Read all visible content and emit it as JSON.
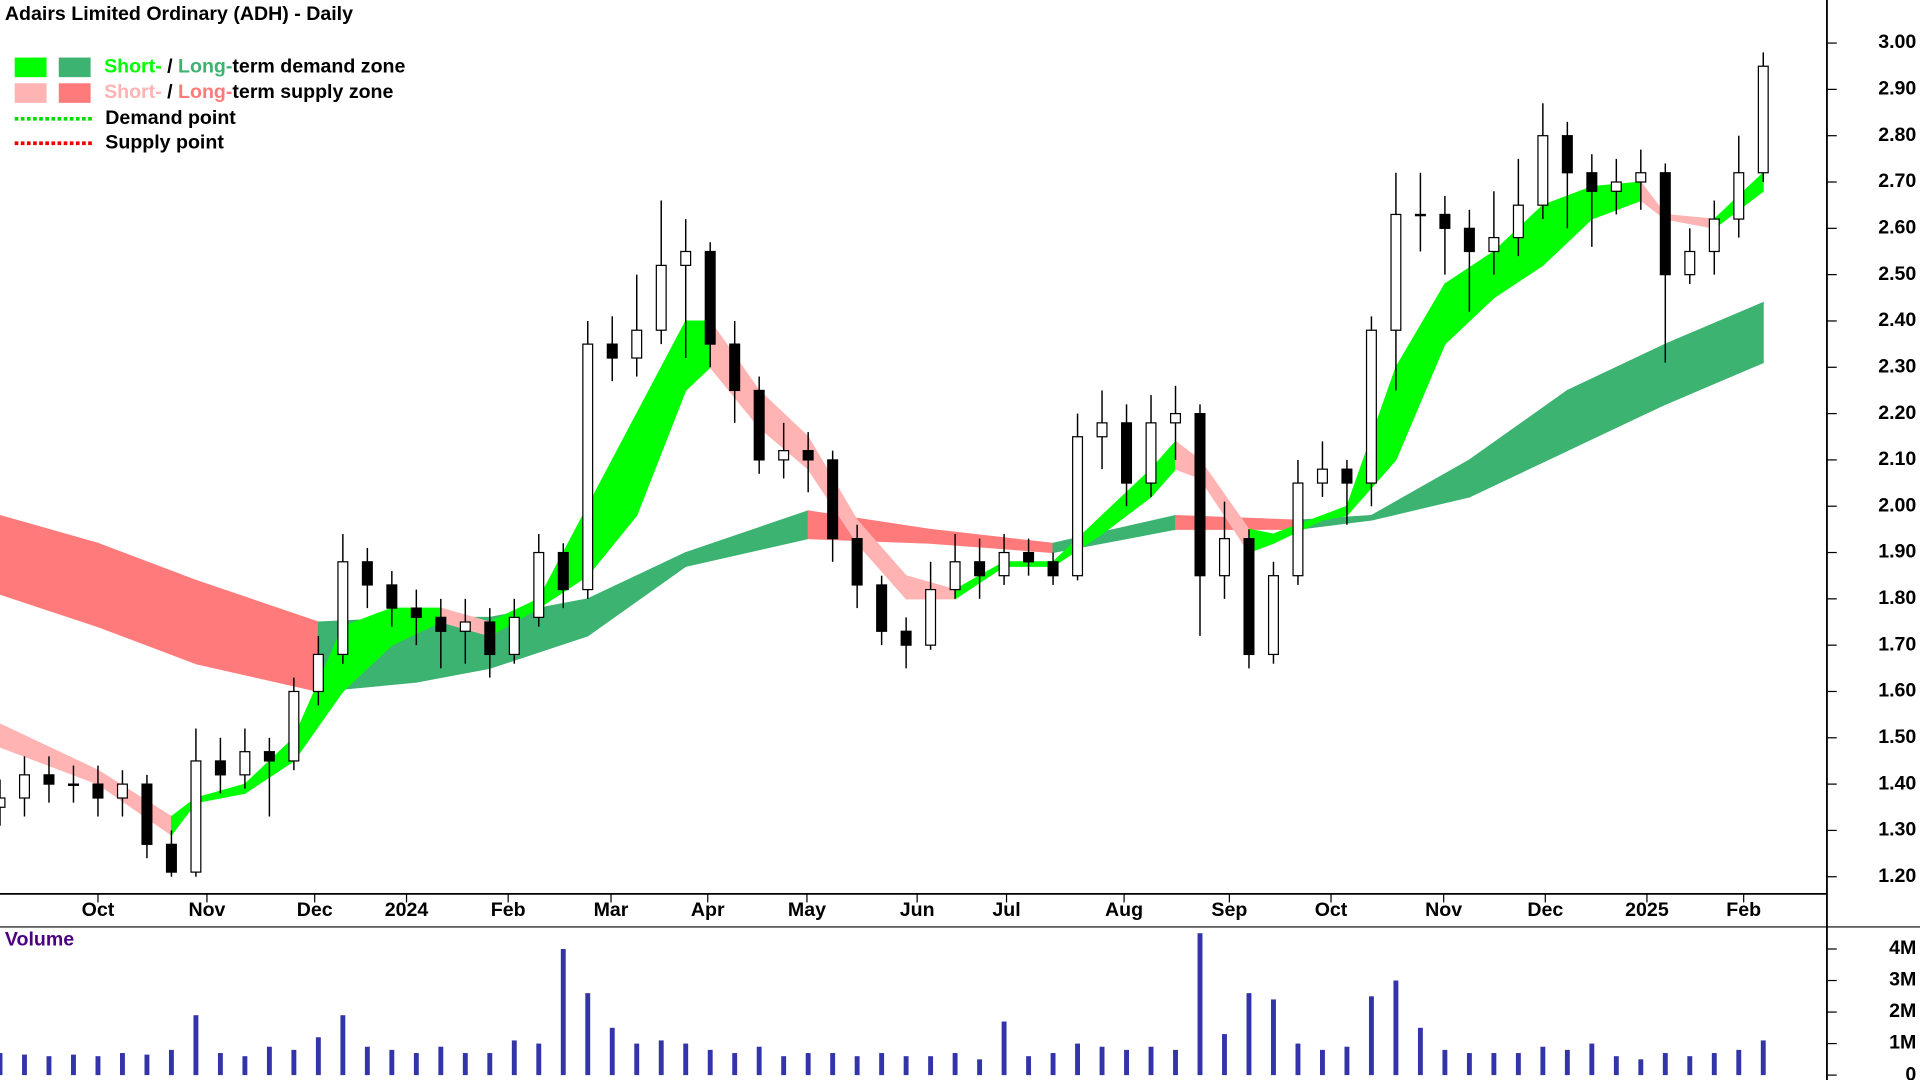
{
  "chart_data": [
    {
      "type": "candlestick",
      "title": "Adairs Limited Ordinary (ADH) - Daily",
      "xlim": [
        0,
        74.5
      ],
      "xticks": [
        {
          "value": 4,
          "label": "Oct"
        },
        {
          "value": 8.45,
          "label": "Nov"
        },
        {
          "value": 12.85,
          "label": "Dec"
        },
        {
          "value": 16.6,
          "label": "2024"
        },
        {
          "value": 20.75,
          "label": "Feb"
        },
        {
          "value": 24.95,
          "label": "Mar"
        },
        {
          "value": 28.9,
          "label": "Apr"
        },
        {
          "value": 32.95,
          "label": "May"
        },
        {
          "value": 37.45,
          "label": "Jun"
        },
        {
          "value": 41.1,
          "label": "Jul"
        },
        {
          "value": 45.9,
          "label": "Aug"
        },
        {
          "value": 50.2,
          "label": "Sep"
        },
        {
          "value": 54.35,
          "label": "Oct"
        },
        {
          "value": 58.95,
          "label": "Nov"
        },
        {
          "value": 63.1,
          "label": "Dec"
        },
        {
          "value": 67.25,
          "label": "2025"
        },
        {
          "value": 71.2,
          "label": "Feb"
        }
      ],
      "ylim": [
        1.163,
        3.093
      ],
      "yticks": [
        {
          "value": 1.2,
          "label": "1.20"
        },
        {
          "value": 1.3,
          "label": "1.30"
        },
        {
          "value": 1.4,
          "label": "1.40"
        },
        {
          "value": 1.5,
          "label": "1.50"
        },
        {
          "value": 1.6,
          "label": "1.60"
        },
        {
          "value": 1.7,
          "label": "1.70"
        },
        {
          "value": 1.8,
          "label": "1.80"
        },
        {
          "value": 1.9,
          "label": "1.90"
        },
        {
          "value": 2.0,
          "label": "2.00"
        },
        {
          "value": 2.1,
          "label": "2.10"
        },
        {
          "value": 2.2,
          "label": "2.20"
        },
        {
          "value": 2.3,
          "label": "2.30"
        },
        {
          "value": 2.4,
          "label": "2.40"
        },
        {
          "value": 2.5,
          "label": "2.50"
        },
        {
          "value": 2.6,
          "label": "2.60"
        },
        {
          "value": 2.7,
          "label": "2.70"
        },
        {
          "value": 2.8,
          "label": "2.80"
        },
        {
          "value": 2.9,
          "label": "2.90"
        },
        {
          "value": 3.0,
          "label": "3.00"
        }
      ],
      "x": [
        0,
        1,
        2,
        3,
        4,
        5,
        6,
        7,
        8,
        9,
        10,
        11,
        12,
        13,
        14,
        15,
        16,
        17,
        18,
        19,
        20,
        21,
        22,
        23,
        24,
        25,
        26,
        27,
        28,
        29,
        30,
        31,
        32,
        33,
        34,
        35,
        36,
        37,
        38,
        39,
        40,
        41,
        42,
        43,
        44,
        45,
        46,
        47,
        48,
        49,
        50,
        51,
        52,
        53,
        54,
        55,
        56,
        57,
        58,
        59,
        60,
        61,
        62,
        63,
        64,
        65,
        66,
        67,
        68,
        69,
        70,
        71,
        72
      ],
      "open": [
        1.35,
        1.37,
        1.42,
        1.4,
        1.4,
        1.37,
        1.4,
        1.27,
        1.21,
        1.45,
        1.42,
        1.47,
        1.45,
        1.6,
        1.68,
        1.88,
        1.83,
        1.78,
        1.76,
        1.73,
        1.75,
        1.68,
        1.76,
        1.9,
        1.82,
        2.35,
        2.32,
        2.38,
        2.52,
        2.55,
        2.35,
        2.25,
        2.1,
        2.12,
        2.1,
        1.93,
        1.83,
        1.73,
        1.7,
        1.82,
        1.88,
        1.85,
        1.9,
        1.88,
        1.85,
        2.15,
        2.18,
        2.05,
        2.18,
        2.2,
        1.85,
        1.93,
        1.68,
        1.85,
        2.05,
        2.08,
        2.05,
        2.38,
        2.63,
        2.63,
        2.6,
        2.55,
        2.58,
        2.65,
        2.8,
        2.72,
        2.68,
        2.7,
        2.72,
        2.5,
        2.55,
        2.62,
        2.72
      ],
      "high": [
        1.41,
        1.46,
        1.46,
        1.44,
        1.44,
        1.43,
        1.42,
        1.3,
        1.52,
        1.5,
        1.52,
        1.5,
        1.63,
        1.72,
        1.94,
        1.91,
        1.86,
        1.82,
        1.8,
        1.8,
        1.78,
        1.8,
        1.94,
        1.92,
        2.4,
        2.41,
        2.5,
        2.66,
        2.62,
        2.57,
        2.4,
        2.28,
        2.18,
        2.16,
        2.12,
        1.96,
        1.85,
        1.76,
        1.88,
        1.94,
        1.93,
        1.94,
        1.93,
        1.9,
        2.2,
        2.25,
        2.22,
        2.24,
        2.26,
        2.22,
        2.01,
        1.95,
        1.88,
        2.1,
        2.14,
        2.1,
        2.41,
        2.72,
        2.72,
        2.67,
        2.64,
        2.68,
        2.75,
        2.87,
        2.83,
        2.76,
        2.75,
        2.77,
        2.74,
        2.6,
        2.66,
        2.8,
        2.98
      ],
      "low": [
        1.31,
        1.33,
        1.36,
        1.36,
        1.33,
        1.33,
        1.24,
        1.2,
        1.2,
        1.38,
        1.39,
        1.33,
        1.43,
        1.57,
        1.66,
        1.78,
        1.74,
        1.7,
        1.65,
        1.66,
        1.63,
        1.66,
        1.74,
        1.78,
        1.8,
        2.27,
        2.28,
        2.35,
        2.32,
        2.3,
        2.18,
        2.07,
        2.06,
        2.03,
        1.88,
        1.78,
        1.7,
        1.65,
        1.69,
        1.8,
        1.8,
        1.83,
        1.85,
        1.83,
        1.84,
        2.08,
        2.0,
        2.02,
        2.1,
        1.72,
        1.8,
        1.65,
        1.66,
        1.83,
        2.02,
        1.96,
        2.0,
        2.25,
        2.55,
        2.5,
        2.42,
        2.5,
        2.54,
        2.62,
        2.6,
        2.56,
        2.63,
        2.64,
        2.31,
        2.48,
        2.5,
        2.58,
        2.7
      ],
      "close": [
        1.37,
        1.42,
        1.4,
        1.4,
        1.37,
        1.4,
        1.27,
        1.21,
        1.45,
        1.42,
        1.47,
        1.45,
        1.6,
        1.68,
        1.88,
        1.83,
        1.78,
        1.76,
        1.73,
        1.75,
        1.68,
        1.76,
        1.9,
        1.82,
        2.35,
        2.32,
        2.38,
        2.52,
        2.55,
        2.35,
        2.25,
        2.1,
        2.12,
        2.1,
        1.93,
        1.83,
        1.73,
        1.7,
        1.82,
        1.88,
        1.85,
        1.9,
        1.88,
        1.85,
        2.15,
        2.18,
        2.05,
        2.18,
        2.2,
        1.85,
        1.93,
        1.68,
        1.85,
        2.05,
        2.08,
        2.05,
        2.38,
        2.63,
        2.63,
        2.6,
        2.55,
        2.58,
        2.65,
        2.8,
        2.72,
        2.68,
        2.7,
        2.72,
        2.5,
        2.55,
        2.62,
        2.72,
        2.95
      ],
      "short_zone": {
        "x": [
          0,
          4,
          7,
          8,
          10,
          12,
          14,
          16,
          18,
          20,
          22,
          24,
          26,
          28,
          29,
          31,
          33,
          35,
          37,
          39,
          41,
          43,
          45,
          47,
          48,
          49,
          51,
          52,
          54,
          55,
          57,
          59,
          61,
          63,
          65,
          67,
          68,
          70,
          72
        ],
        "upper": [
          1.53,
          1.43,
          1.33,
          1.37,
          1.4,
          1.5,
          1.74,
          1.78,
          1.78,
          1.75,
          1.8,
          2.0,
          2.2,
          2.4,
          2.4,
          2.25,
          2.15,
          1.97,
          1.85,
          1.82,
          1.88,
          1.88,
          1.98,
          2.08,
          2.14,
          2.1,
          1.95,
          1.94,
          1.98,
          2.0,
          2.3,
          2.48,
          2.55,
          2.65,
          2.69,
          2.7,
          2.63,
          2.62,
          2.72
        ],
        "lower": [
          1.48,
          1.4,
          1.29,
          1.36,
          1.38,
          1.45,
          1.6,
          1.7,
          1.75,
          1.72,
          1.78,
          1.85,
          1.98,
          2.25,
          2.3,
          2.17,
          2.08,
          1.92,
          1.8,
          1.8,
          1.87,
          1.87,
          1.94,
          2.02,
          2.08,
          2.06,
          1.9,
          1.92,
          1.97,
          1.98,
          2.1,
          2.35,
          2.45,
          2.52,
          2.62,
          2.66,
          2.62,
          2.6,
          2.68
        ]
      },
      "long_zone": {
        "x": [
          0,
          4,
          8,
          13,
          17,
          20,
          24,
          28,
          33,
          38,
          43,
          48,
          53,
          56,
          60,
          64,
          68,
          72
        ],
        "upper": [
          1.98,
          1.92,
          1.84,
          1.75,
          1.76,
          1.76,
          1.8,
          1.9,
          1.99,
          1.95,
          1.92,
          1.98,
          1.97,
          1.98,
          2.1,
          2.25,
          2.35,
          2.44
        ],
        "lower": [
          1.81,
          1.74,
          1.66,
          1.6,
          1.62,
          1.65,
          1.72,
          1.87,
          1.93,
          1.92,
          1.9,
          1.95,
          1.95,
          1.97,
          2.02,
          2.12,
          2.22,
          2.31
        ]
      },
      "legend": {
        "zones": [
          {
            "parts": [
              "Short-",
              " / ",
              "Long-",
              "term demand zone"
            ],
            "colors": [
              "#00ff00",
              "#3cb371"
            ]
          },
          {
            "parts": [
              "Short-",
              " / ",
              "Long-",
              "term supply zone"
            ],
            "colors": [
              "#ffb3b3",
              "#ff7b7b"
            ]
          }
        ],
        "points": [
          {
            "label": "Demand point",
            "color": "#00dd00"
          },
          {
            "label": "Supply point",
            "color": "#ee0000"
          }
        ]
      }
    },
    {
      "type": "bar",
      "title": "Volume",
      "color": "#3333aa",
      "xlim": [
        0,
        74.5
      ],
      "ylim": [
        0,
        4700000
      ],
      "yticks": [
        0,
        {
          "value": 1000000,
          "label": "1M"
        },
        {
          "value": 2000000,
          "label": "2M"
        },
        {
          "value": 3000000,
          "label": "3M"
        },
        {
          "value": 4000000,
          "label": "4M"
        }
      ],
      "x": [
        0,
        1,
        2,
        3,
        4,
        5,
        6,
        7,
        8,
        9,
        10,
        11,
        12,
        13,
        14,
        15,
        16,
        17,
        18,
        19,
        20,
        21,
        22,
        23,
        24,
        25,
        26,
        27,
        28,
        29,
        30,
        31,
        32,
        33,
        34,
        35,
        36,
        37,
        38,
        39,
        40,
        41,
        42,
        43,
        44,
        45,
        46,
        47,
        48,
        49,
        50,
        51,
        52,
        53,
        54,
        55,
        56,
        57,
        58,
        59,
        60,
        61,
        62,
        63,
        64,
        65,
        66,
        67,
        68,
        69,
        70,
        71,
        72
      ],
      "values": [
        700000,
        650000,
        600000,
        650000,
        600000,
        700000,
        650000,
        800000,
        1900000,
        700000,
        600000,
        900000,
        800000,
        1200000,
        1900000,
        900000,
        800000,
        700000,
        900000,
        700000,
        700000,
        1100000,
        1000000,
        4000000,
        2600000,
        1500000,
        1000000,
        1100000,
        1000000,
        800000,
        700000,
        900000,
        600000,
        700000,
        700000,
        600000,
        700000,
        600000,
        600000,
        700000,
        500000,
        1700000,
        600000,
        700000,
        1000000,
        900000,
        800000,
        900000,
        800000,
        4500000,
        1300000,
        2600000,
        2400000,
        1000000,
        800000,
        900000,
        2500000,
        3000000,
        1500000,
        800000,
        700000,
        700000,
        700000,
        900000,
        800000,
        1000000,
        600000,
        500000,
        700000,
        600000,
        700000,
        800000,
        1100000
      ]
    }
  ]
}
